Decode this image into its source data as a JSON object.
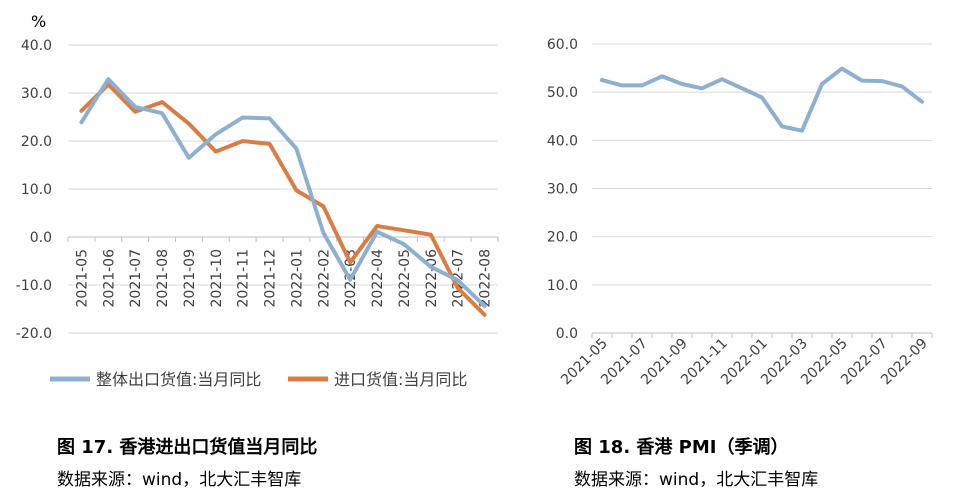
{
  "chart_data": [
    {
      "type": "line",
      "title": "图 17. 香港进出口货值当月同比",
      "source": "数据来源：wind，北大汇丰智库",
      "ylabel": "%",
      "ylim": [
        -20,
        40
      ],
      "yticks": [
        "40.0",
        "30.0",
        "20.0",
        "10.0",
        "0.0",
        "-10.0",
        "-20.0"
      ],
      "categories": [
        "2021-05",
        "2021-06",
        "2021-07",
        "2021-08",
        "2021-09",
        "2021-10",
        "2021-11",
        "2021-12",
        "2022-01",
        "2022-02",
        "2022-03",
        "2022-04",
        "2022-05",
        "2022-06",
        "2022-07",
        "2022-08"
      ],
      "grid": true,
      "legend": "bottom",
      "series": [
        {
          "name": "整体出口货值:当月同比",
          "color": "#8EB0D0",
          "values": [
            23.9,
            32.9,
            27.1,
            25.8,
            16.5,
            21.4,
            24.9,
            24.7,
            18.4,
            0.9,
            -8.9,
            1.1,
            -1.5,
            -6.2,
            -9.0,
            -14.4
          ]
        },
        {
          "name": "进口货值:当月同比",
          "color": "#D97D45",
          "values": [
            26.3,
            31.8,
            26.1,
            28.1,
            23.6,
            17.8,
            20.0,
            19.4,
            9.7,
            6.4,
            -5.3,
            2.3,
            1.4,
            0.5,
            -10.6,
            -16.2
          ]
        }
      ]
    },
    {
      "type": "line",
      "title": "图 18. 香港 PMI（季调）",
      "source": "数据来源：wind，北大汇丰智库",
      "ylim": [
        0,
        60
      ],
      "yticks": [
        "60.0",
        "50.0",
        "40.0",
        "30.0",
        "20.0",
        "10.0",
        "0.0"
      ],
      "categories": [
        "2021-05",
        "2021-06",
        "2021-07",
        "2021-08",
        "2021-09",
        "2021-10",
        "2021-11",
        "2021-12",
        "2022-01",
        "2022-02",
        "2022-03",
        "2022-04",
        "2022-05",
        "2022-06",
        "2022-07",
        "2022-08",
        "2022-09"
      ],
      "xtick_labels": [
        "2021-05",
        "2021-07",
        "2021-09",
        "2021-11",
        "2022-01",
        "2022-03",
        "2022-05",
        "2022-07",
        "2022-09"
      ],
      "grid": true,
      "series": [
        {
          "name": "香港PMI",
          "color": "#8EB0D0",
          "values": [
            52.5,
            51.4,
            51.4,
            53.3,
            51.7,
            50.8,
            52.7,
            50.8,
            48.9,
            42.9,
            42.0,
            51.7,
            54.9,
            52.4,
            52.3,
            51.2,
            48.0
          ]
        }
      ]
    }
  ]
}
